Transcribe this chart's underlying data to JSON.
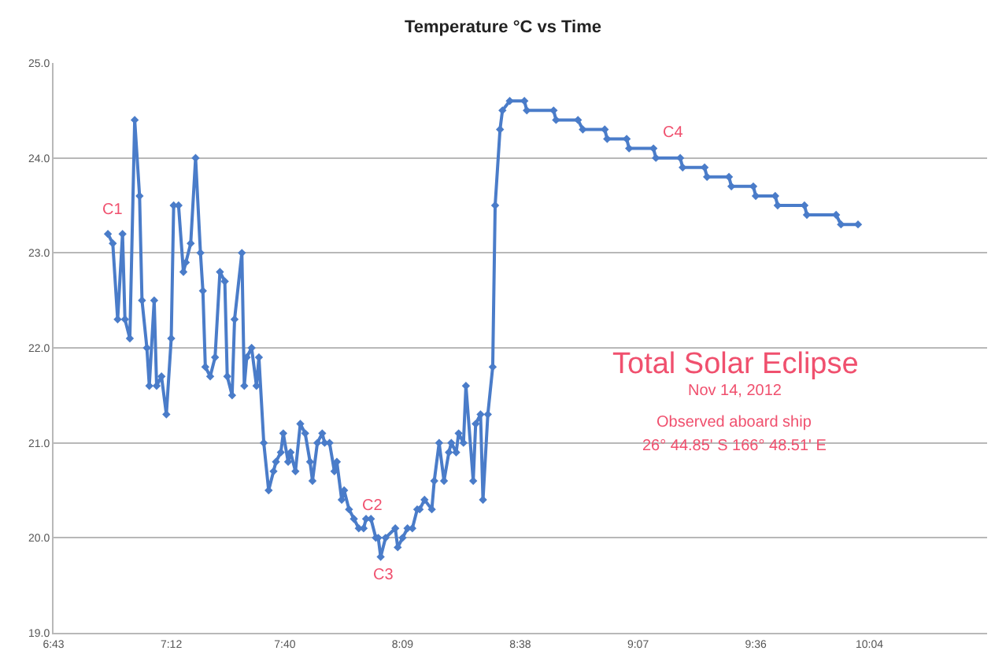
{
  "chart_data": {
    "type": "line",
    "title": "Temperature °C vs Time",
    "x": [
      6.94,
      6.96,
      6.98,
      7.0,
      7.01,
      7.03,
      7.05,
      7.07,
      7.08,
      7.1,
      7.11,
      7.13,
      7.14,
      7.16,
      7.18,
      7.2,
      7.21,
      7.23,
      7.25,
      7.26,
      7.28,
      7.3,
      7.32,
      7.33,
      7.34,
      7.36,
      7.38,
      7.4,
      7.42,
      7.43,
      7.45,
      7.46,
      7.49,
      7.5,
      7.51,
      7.53,
      7.55,
      7.56,
      7.58,
      7.6,
      7.62,
      7.63,
      7.65,
      7.66,
      7.68,
      7.69,
      7.71,
      7.73,
      7.75,
      7.77,
      7.78,
      7.8,
      7.82,
      7.83,
      7.85,
      7.87,
      7.88,
      7.9,
      7.91,
      7.93,
      7.95,
      7.97,
      7.99,
      8.0,
      8.02,
      8.04,
      8.05,
      8.06,
      8.08,
      8.12,
      8.13,
      8.15,
      8.17,
      8.19,
      8.21,
      8.22,
      8.24,
      8.27,
      8.28,
      8.3,
      8.32,
      8.34,
      8.35,
      8.37,
      8.38,
      8.4,
      8.41,
      8.44,
      8.45,
      8.47,
      8.48,
      8.5,
      8.52,
      8.53,
      8.55,
      8.56,
      8.59,
      8.65,
      8.66,
      8.77,
      8.78,
      8.87,
      8.89,
      8.98,
      8.99,
      9.07,
      9.08,
      9.18,
      9.19,
      9.29,
      9.3,
      9.39,
      9.4,
      9.49,
      9.5,
      9.59,
      9.6,
      9.68,
      9.69,
      9.8,
      9.81,
      9.93,
      9.95,
      10.02
    ],
    "series": [
      {
        "color": "#4a7cc9",
        "values": [
          23.2,
          23.1,
          22.3,
          23.2,
          22.3,
          22.1,
          24.4,
          23.6,
          22.5,
          22.0,
          21.6,
          22.5,
          21.6,
          21.7,
          21.3,
          22.1,
          23.5,
          23.5,
          22.8,
          22.9,
          23.1,
          24.0,
          23.0,
          22.6,
          21.8,
          21.7,
          21.9,
          22.8,
          22.7,
          21.7,
          21.5,
          22.3,
          23.0,
          21.6,
          21.9,
          22.0,
          21.6,
          21.9,
          21.0,
          20.5,
          20.7,
          20.8,
          20.9,
          21.1,
          20.8,
          20.9,
          20.7,
          21.2,
          21.1,
          20.8,
          20.6,
          21.0,
          21.1,
          21.0,
          21.0,
          20.7,
          20.8,
          20.4,
          20.5,
          20.3,
          20.2,
          20.1,
          20.1,
          20.2,
          20.2,
          20.0,
          20.0,
          19.8,
          20.0,
          20.1,
          19.9,
          20.0,
          20.1,
          20.1,
          20.3,
          20.3,
          20.4,
          20.3,
          20.6,
          21.0,
          20.6,
          20.9,
          21.0,
          20.9,
          21.1,
          21.0,
          21.6,
          20.6,
          21.2,
          21.3,
          20.4,
          21.3,
          21.8,
          23.5,
          24.3,
          24.5,
          24.6,
          24.6,
          24.5,
          24.5,
          24.4,
          24.4,
          24.3,
          24.3,
          24.2,
          24.2,
          24.1,
          24.1,
          24.0,
          24.0,
          23.9,
          23.9,
          23.8,
          23.8,
          23.7,
          23.7,
          23.6,
          23.6,
          23.5,
          23.5,
          23.4,
          23.4,
          23.3,
          23.3
        ]
      }
    ],
    "xlim": [
      6.7167,
      10.55
    ],
    "xticks": [
      {
        "value": 6.7167,
        "label": "6:43"
      },
      {
        "value": 7.2,
        "label": "7:12"
      },
      {
        "value": 7.6667,
        "label": "7:40"
      },
      {
        "value": 8.15,
        "label": "8:09"
      },
      {
        "value": 8.6333,
        "label": "8:38"
      },
      {
        "value": 9.1167,
        "label": "9:07"
      },
      {
        "value": 9.6,
        "label": "9:36"
      },
      {
        "value": 10.0667,
        "label": "10:04"
      }
    ],
    "ylim": [
      19,
      25
    ],
    "yticks": [
      {
        "value": 19,
        "label": "19.0"
      },
      {
        "value": 20,
        "label": "20.0"
      },
      {
        "value": 21,
        "label": "21.0"
      },
      {
        "value": 22,
        "label": "22.0"
      },
      {
        "value": 23,
        "label": "23.0"
      },
      {
        "value": 24,
        "label": "24.0"
      },
      {
        "value": 25,
        "label": "25.0"
      }
    ],
    "grid": "y",
    "marker": "diamond",
    "line_style": "solid",
    "annotations": [
      "C1",
      "C2",
      "C3",
      "C4",
      "Total Solar Eclipse",
      "Nov 14, 2012",
      "Observed aboard ship",
      "26° 44.85' S 166° 48.51' E"
    ]
  }
}
